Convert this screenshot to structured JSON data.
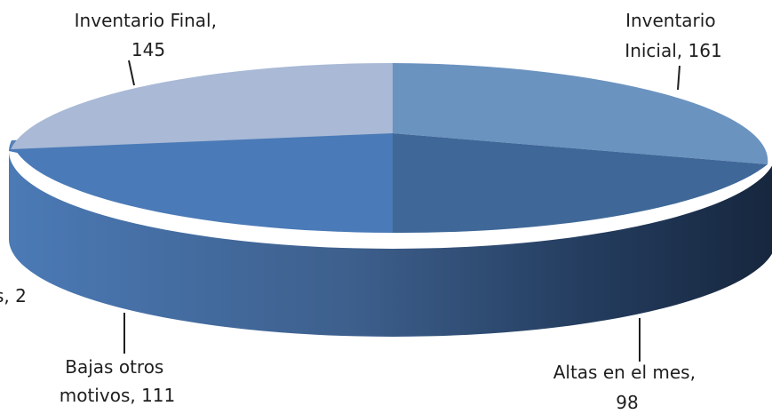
{
  "chart_data": {
    "type": "pie",
    "style": "3d-exploded",
    "slices": [
      {
        "label": "Inventario Inicial",
        "value": 161,
        "color": "#6b93c0",
        "label_lines": [
          "Inventario",
          "Inicial, 161"
        ]
      },
      {
        "label": "Altas en el mes",
        "value": 98,
        "color": "#3f6898",
        "label_lines": [
          "Altas en el mes,",
          "98"
        ]
      },
      {
        "label": "Bajas otros motivos",
        "value": 111,
        "color": "#4a7ab7",
        "label_lines": [
          "Bajas otros",
          "motivos, 111"
        ]
      },
      {
        "label": "Bajas",
        "value": 2,
        "color": "#5a82b8",
        "label_lines": [
          "s, 2"
        ]
      },
      {
        "label": "Inventario Final",
        "value": 145,
        "color": "#a9b9d6",
        "label_lines": [
          "Inventario Final,",
          "145"
        ]
      }
    ],
    "data_labels": "category, value"
  }
}
